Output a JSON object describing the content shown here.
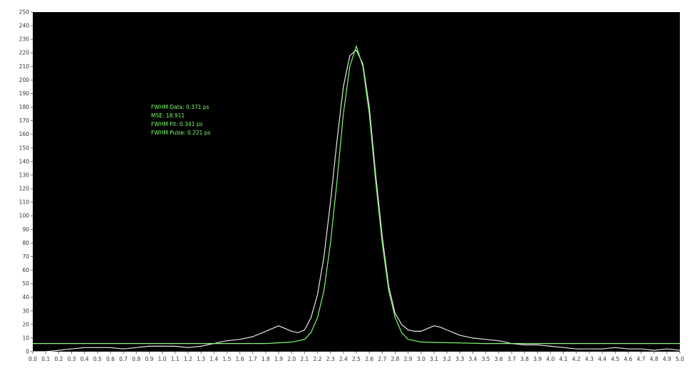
{
  "chart_data": {
    "type": "line",
    "title": "",
    "xlabel": "",
    "ylabel": "",
    "xlim": [
      0.0,
      5.0
    ],
    "ylim": [
      0,
      250
    ],
    "x_ticks": [
      "0.0",
      "0.1",
      "0.2",
      "0.3",
      "0.4",
      "0.5",
      "0.6",
      "0.7",
      "0.8",
      "0.9",
      "1.0",
      "1.1",
      "1.2",
      "1.3",
      "1.4",
      "1.5",
      "1.6",
      "1.7",
      "1.8",
      "1.9",
      "2.0",
      "2.1",
      "2.2",
      "2.3",
      "2.4",
      "2.5",
      "2.6",
      "2.7",
      "2.8",
      "2.9",
      "3.0",
      "3.1",
      "3.2",
      "3.3",
      "3.4",
      "3.5",
      "3.6",
      "3.7",
      "3.8",
      "3.9",
      "4.0",
      "4.1",
      "4.2",
      "4.3",
      "4.4",
      "4.5",
      "4.6",
      "4.7",
      "4.8",
      "4.9",
      "5.0"
    ],
    "y_ticks": [
      "0",
      "10",
      "20",
      "30",
      "40",
      "50",
      "60",
      "70",
      "80",
      "90",
      "100",
      "110",
      "120",
      "130",
      "140",
      "150",
      "160",
      "170",
      "180",
      "190",
      "200",
      "210",
      "220",
      "230",
      "240",
      "250"
    ],
    "grid": false,
    "background": "#000000",
    "annotations": [
      "FWHM Data: 0.371 ps",
      "MSE: 18.911",
      "FWHM Fit: 0.341 ps",
      "FWHM Pulse: 0.221 ps"
    ],
    "series": [
      {
        "color": "#E8E8E8",
        "x": [
          0.0,
          0.1,
          0.2,
          0.3,
          0.4,
          0.5,
          0.6,
          0.7,
          0.8,
          0.9,
          1.0,
          1.1,
          1.2,
          1.3,
          1.4,
          1.5,
          1.6,
          1.7,
          1.8,
          1.85,
          1.9,
          1.95,
          2.0,
          2.05,
          2.1,
          2.15,
          2.2,
          2.25,
          2.3,
          2.35,
          2.4,
          2.45,
          2.5,
          2.55,
          2.6,
          2.65,
          2.7,
          2.75,
          2.8,
          2.85,
          2.9,
          2.95,
          3.0,
          3.05,
          3.1,
          3.15,
          3.2,
          3.3,
          3.4,
          3.5,
          3.6,
          3.7,
          3.8,
          3.9,
          4.0,
          4.1,
          4.2,
          4.3,
          4.4,
          4.5,
          4.6,
          4.7,
          4.8,
          4.9,
          5.0
        ],
        "values": [
          0,
          0,
          1,
          2,
          3,
          3,
          3,
          2,
          3,
          4,
          4,
          4,
          3,
          4,
          6,
          8,
          9,
          11,
          15,
          17,
          19,
          17,
          15,
          14,
          16,
          25,
          42,
          70,
          110,
          155,
          195,
          218,
          222,
          212,
          180,
          130,
          85,
          48,
          28,
          20,
          16,
          15,
          15,
          17,
          19,
          18,
          16,
          12,
          10,
          9,
          8,
          6,
          5,
          5,
          4,
          3,
          2,
          2,
          2,
          3,
          2,
          2,
          1,
          2,
          1
        ]
      },
      {
        "color": "#7CFC6A",
        "x": [
          0.0,
          0.5,
          1.0,
          1.5,
          1.8,
          2.0,
          2.1,
          2.15,
          2.2,
          2.25,
          2.3,
          2.35,
          2.4,
          2.45,
          2.5,
          2.55,
          2.6,
          2.65,
          2.7,
          2.75,
          2.8,
          2.85,
          2.9,
          3.0,
          3.5,
          4.0,
          4.5,
          5.0
        ],
        "values": [
          6,
          6,
          6,
          6,
          6,
          7,
          9,
          14,
          25,
          45,
          80,
          125,
          175,
          210,
          225,
          210,
          175,
          125,
          80,
          45,
          25,
          14,
          9,
          7,
          6,
          6,
          6,
          6
        ]
      }
    ]
  }
}
